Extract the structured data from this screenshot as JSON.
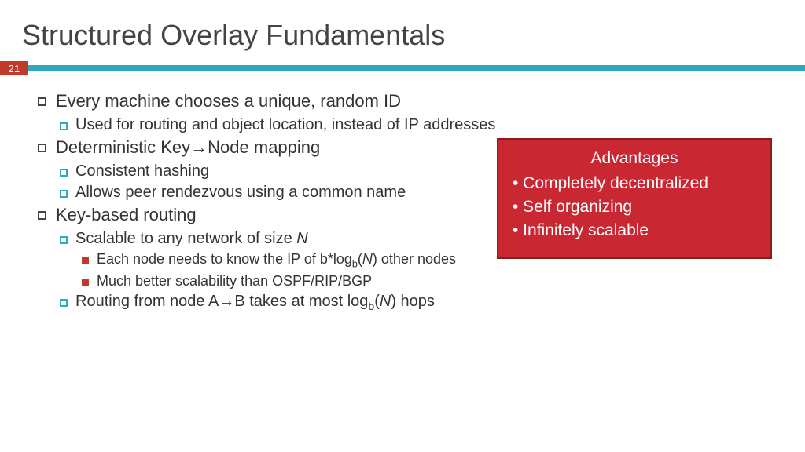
{
  "page_number": "21",
  "title": "Structured Overlay Fundamentals",
  "colors": {
    "accent_teal": "#2fa8bf",
    "accent_red": "#c0392b",
    "box_bg": "#c92833",
    "box_border": "#8a1c1c",
    "text": "#333333",
    "title_text": "#444444"
  },
  "bullets": {
    "b1": "Every machine chooses a unique, random ID",
    "b1_1": "Used for routing and object location, instead of IP addresses",
    "b2_pre": "Deterministic Key",
    "b2_post": "Node mapping",
    "b2_1": "Consistent hashing",
    "b2_2": "Allows peer rendezvous using a common name",
    "b3": "Key-based routing",
    "b3_1_pre": "Scalable to any network of size ",
    "b3_1_n": "N",
    "b3_1_1_pre": "Each node needs to know the IP of b*log",
    "b3_1_1_sub": "b",
    "b3_1_1_paren_open": "(",
    "b3_1_1_n": "N",
    "b3_1_1_post": ") other nodes",
    "b3_1_2": "Much better scalability than OSPF/RIP/BGP",
    "b3_2_pre": "Routing from node A",
    "b3_2_mid": "B takes at most log",
    "b3_2_sub": "b",
    "b3_2_paren_open": "(",
    "b3_2_n": "N",
    "b3_2_post": ") hops"
  },
  "arrow": "→",
  "adv": {
    "title": "Advantages",
    "i1": "• Completely decentralized",
    "i2": "• Self organizing",
    "i3": "• Infinitely scalable"
  }
}
